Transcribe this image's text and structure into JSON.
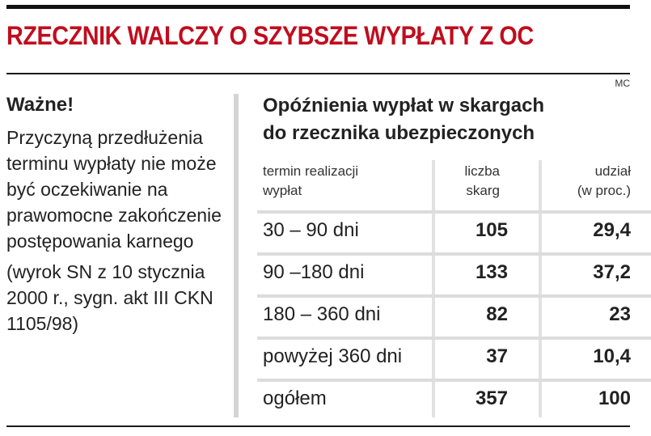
{
  "title": "RZECZNIK WALCZY O SZYBSZE WYPŁATY Z OC",
  "credit": "MC",
  "left_panel": {
    "heading": "Ważne!",
    "body": "Przyczyną przedłużenia terminu wypłaty nie może być oczekiwanie na prawomocne zakończenie postępowania karnego",
    "note": "(wyrok SN z 10 stycznia 2000 r., sygn. akt III CKN 1105/98)"
  },
  "chart_data": {
    "type": "table",
    "title": "Opóźnienia wypłat w skargach\ndo rzecznika ubezpieczonych",
    "columns": [
      "termin realizacji\nwypłat",
      "liczba\nskarg",
      "udział\n(w proc.)"
    ],
    "rows": [
      [
        "30 – 90 dni",
        "105",
        "29,4"
      ],
      [
        "90 –180 dni",
        "133",
        "37,2"
      ],
      [
        "180 – 360 dni",
        "82",
        "23"
      ],
      [
        "powyżej 360 dni",
        "37",
        "10,4"
      ],
      [
        "ogółem",
        "357",
        "100"
      ]
    ]
  }
}
